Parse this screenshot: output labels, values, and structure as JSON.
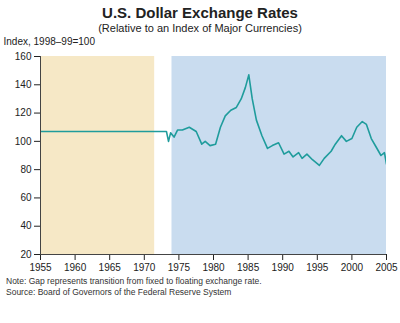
{
  "chart_data": {
    "type": "line",
    "title": "U.S. Dollar Exchange Rates",
    "subtitle": "(Relative to an Index of Major Currencies)",
    "ylabel": "Index, 1998–99=100",
    "note": "Note: Gap represents transition from fixed to floating exchange rate.",
    "source": "Source: Board of Governors of the Federal Reserve System",
    "x": [
      1955,
      1973.2,
      1973.5,
      1973.8,
      1974.3,
      1974.8,
      1975.5,
      1976.5,
      1977.5,
      1978.3,
      1978.8,
      1979.5,
      1980.3,
      1981,
      1981.7,
      1982.5,
      1983.3,
      1984,
      1984.6,
      1985.1,
      1985.6,
      1986.2,
      1987,
      1987.8,
      1988.5,
      1989.4,
      1990.2,
      1990.9,
      1991.5,
      1992.3,
      1992.8,
      1993.5,
      1994.3,
      1995.3,
      1996,
      1997,
      1997.6,
      1998.5,
      1999.2,
      2000,
      2000.7,
      2001.5,
      2002.1,
      2002.8,
      2003.5,
      2004.2,
      2004.7,
      2005
    ],
    "values": [
      107,
      107,
      100,
      106,
      103,
      108,
      108,
      110,
      107,
      98,
      100,
      97,
      98,
      110,
      118,
      122,
      124,
      130,
      138,
      147,
      130,
      115,
      104,
      95,
      97,
      99,
      91,
      93,
      89,
      92,
      88,
      91,
      87,
      83,
      88,
      93,
      98,
      104,
      100,
      102,
      110,
      114,
      112,
      102,
      96,
      90,
      92,
      84
    ],
    "color": "#1f9c9c",
    "regions": [
      {
        "start": 1955,
        "end": 1971.5,
        "color": "#f6e8c6"
      },
      {
        "start": 1974,
        "end": 2005,
        "color": "#c9dcef"
      }
    ],
    "xlim": [
      1955,
      2005
    ],
    "xticks": [
      1955,
      1960,
      1965,
      1970,
      1975,
      1980,
      1985,
      1990,
      1995,
      2000,
      2005
    ],
    "ylim": [
      20,
      160
    ],
    "yticks": [
      20,
      40,
      60,
      80,
      100,
      120,
      140,
      160
    ],
    "grid": false
  }
}
